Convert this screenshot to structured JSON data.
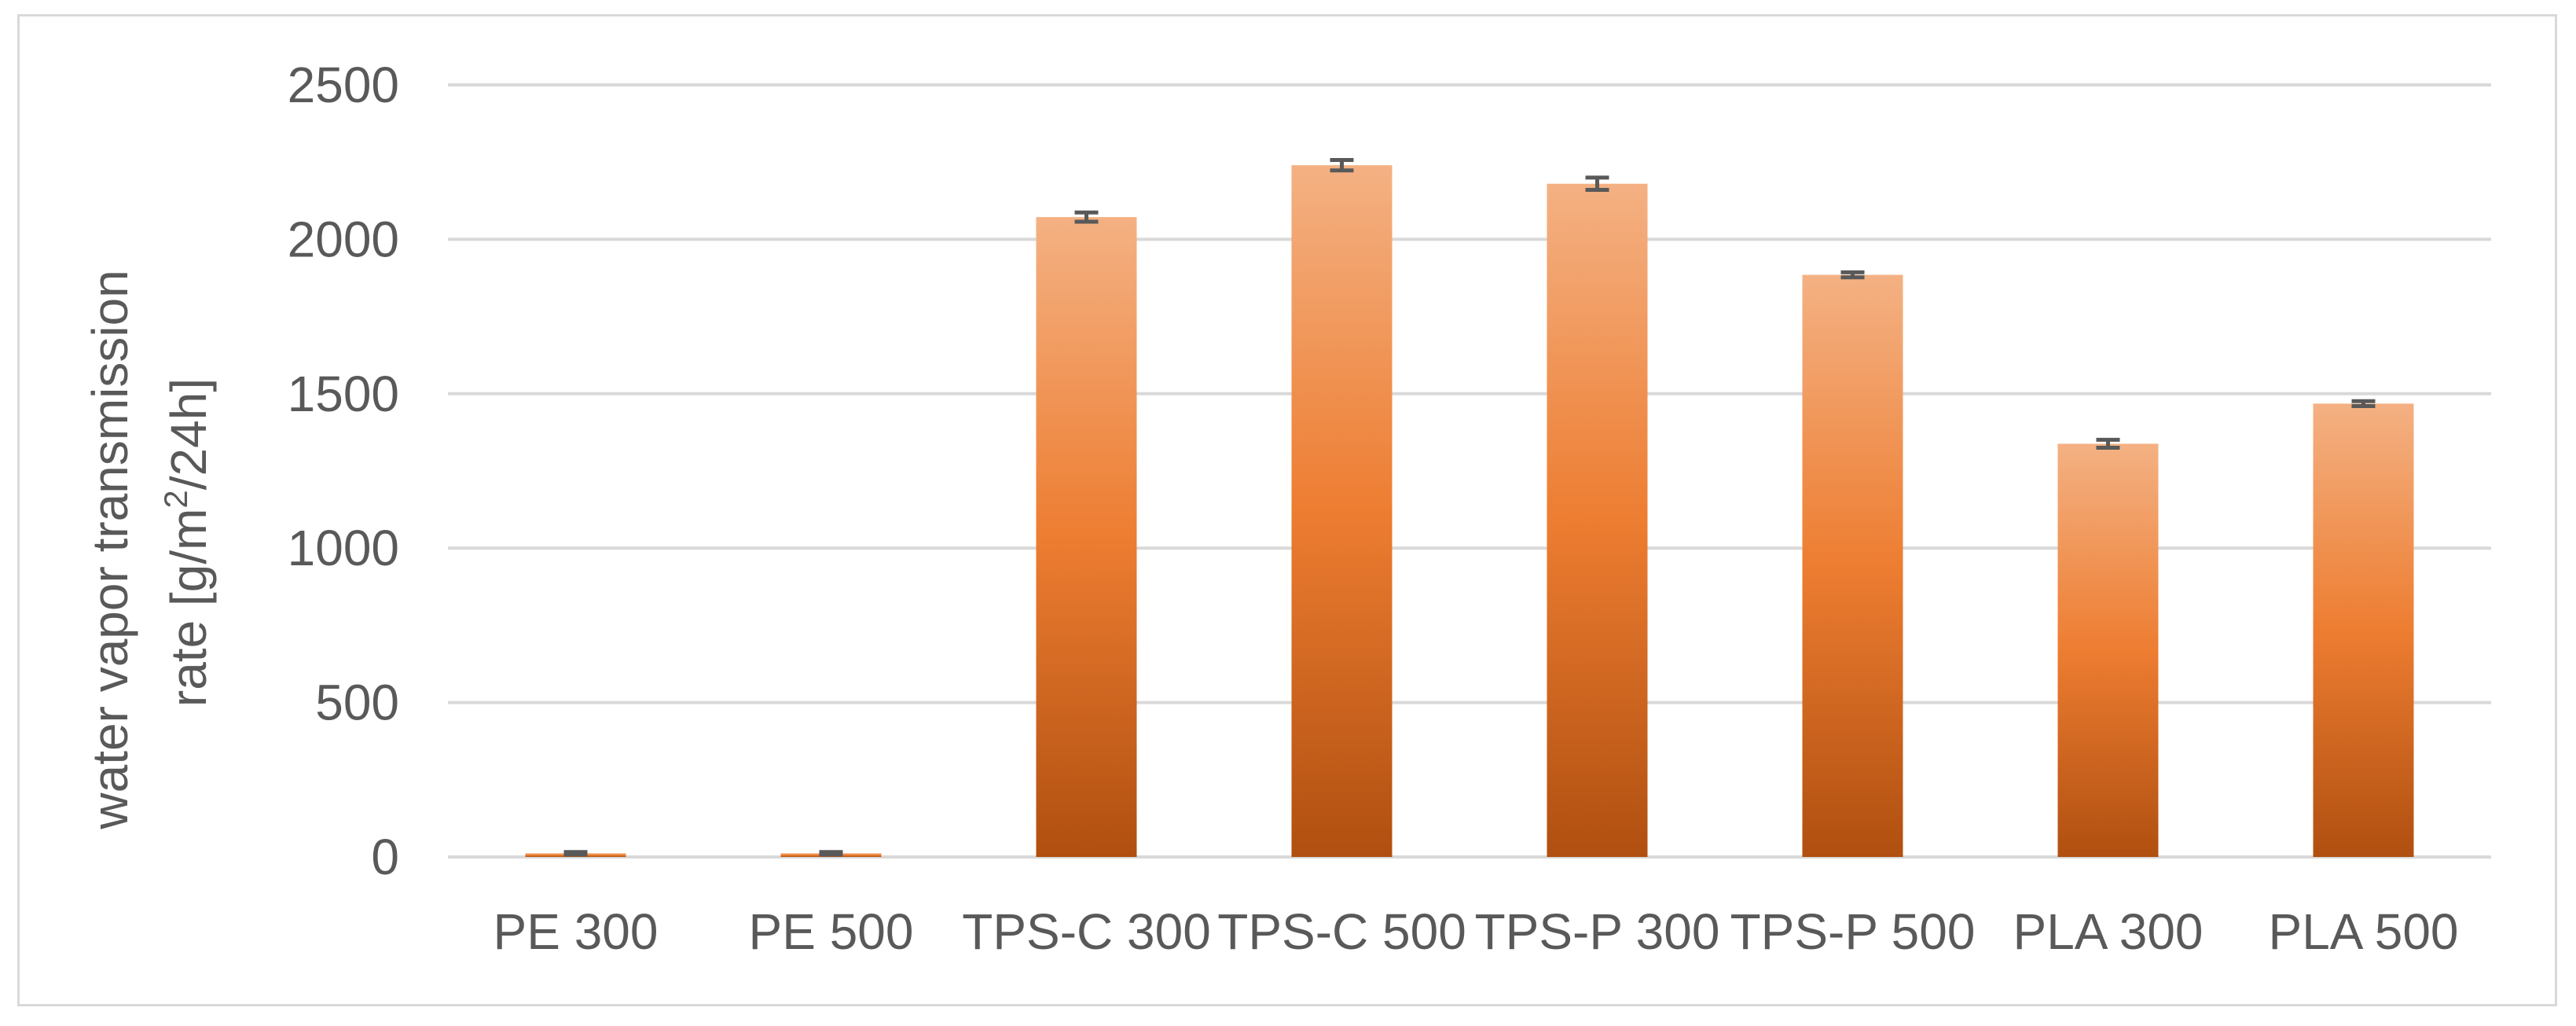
{
  "chart_data": {
    "type": "bar",
    "title": "",
    "xlabel": "",
    "ylabel_lines": [
      "water vapor transmission",
      "rate [g/m",
      "2",
      "/24h]"
    ],
    "ylabel": "water vapor transmission rate [g/m2/24h]",
    "ylim": [
      0,
      2500
    ],
    "yticks": [
      0,
      500,
      1000,
      1500,
      2000,
      2500
    ],
    "ytick_labels": [
      "0",
      "500",
      "1000",
      "1500",
      "2000",
      "2500"
    ],
    "grid": true,
    "legend": "none",
    "categories": [
      "PE 300",
      "PE 500",
      "TPS-C 300",
      "TPS-C 500",
      "TPS-P 300",
      "TPS-P 500",
      "PLA 300",
      "PLA 500"
    ],
    "values": [
      12,
      12,
      2072,
      2240,
      2180,
      1885,
      1338,
      1468
    ],
    "errors": [
      4,
      4,
      15,
      17,
      20,
      8,
      13,
      8
    ],
    "colors": {
      "bar_top": "#f4b183",
      "bar_mid": "#ed7d31",
      "bar_bottom": "#b04f10",
      "grid": "#d9d9d9",
      "text": "#595959",
      "error_bar": "#595959"
    }
  }
}
